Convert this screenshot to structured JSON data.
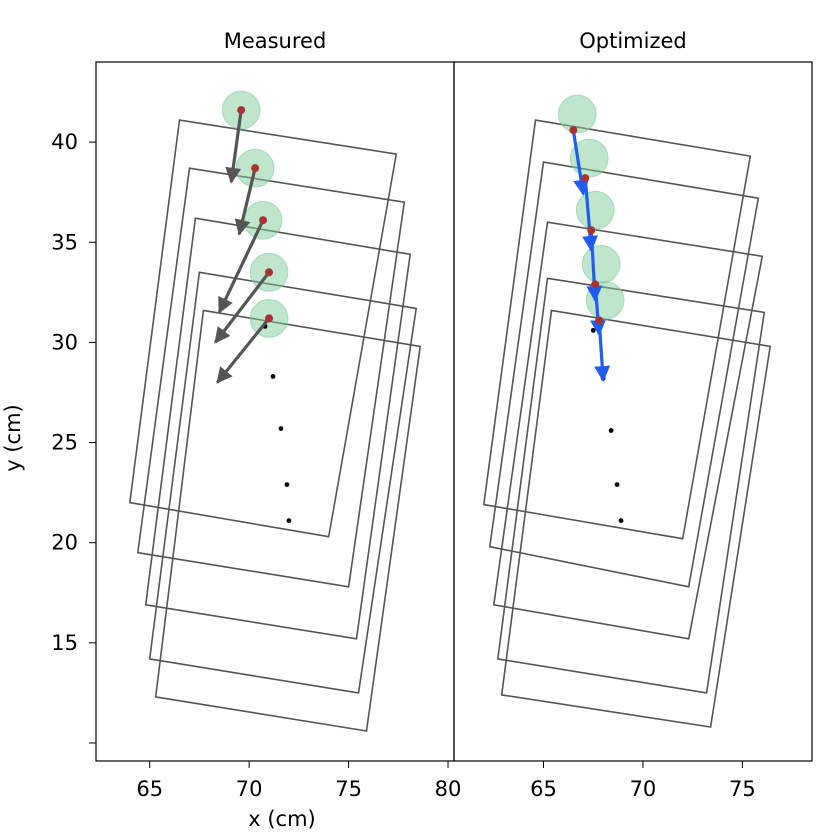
{
  "chart_data": [
    {
      "type": "scatter",
      "title": "Measured",
      "xlabel": "x (cm)",
      "ylabel": "y (cm)",
      "xlim": [
        62.3,
        80.3
      ],
      "ylim": [
        9.1,
        44.0
      ],
      "xticks": [
        65,
        70,
        75,
        80
      ],
      "yticks": [
        15,
        20,
        25,
        30,
        35,
        40
      ],
      "minor_yticks": [
        10
      ],
      "grid": false,
      "colors": {
        "frame": "#555555",
        "arrow": "#555555",
        "marker": "#a83232",
        "circle": "#7fcc9c",
        "point": "#000000"
      },
      "rectangles": [
        {
          "corners": [
            [
              64.0,
              22.0
            ],
            [
              66.5,
              41.1
            ],
            [
              77.4,
              39.4
            ],
            [
              74.0,
              20.3
            ]
          ]
        },
        {
          "corners": [
            [
              64.4,
              19.5
            ],
            [
              67.0,
              38.7
            ],
            [
              77.8,
              37.0
            ],
            [
              75.0,
              17.8
            ]
          ]
        },
        {
          "corners": [
            [
              64.8,
              16.9
            ],
            [
              67.3,
              36.2
            ],
            [
              78.1,
              34.4
            ],
            [
              75.4,
              15.2
            ]
          ]
        },
        {
          "corners": [
            [
              65.0,
              14.2
            ],
            [
              67.5,
              33.5
            ],
            [
              78.4,
              31.7
            ],
            [
              75.5,
              12.5
            ]
          ]
        },
        {
          "corners": [
            [
              65.3,
              12.3
            ],
            [
              67.7,
              31.6
            ],
            [
              78.6,
              29.8
            ],
            [
              75.9,
              10.6
            ]
          ]
        }
      ],
      "markers": [
        {
          "x": 69.6,
          "y": 41.6
        },
        {
          "x": 70.3,
          "y": 38.7
        },
        {
          "x": 70.7,
          "y": 36.1
        },
        {
          "x": 71.0,
          "y": 33.5
        },
        {
          "x": 71.0,
          "y": 31.2
        }
      ],
      "circle_radius_cm": 0.95,
      "arrows": [
        {
          "x0": 69.6,
          "y0": 41.6,
          "x1": 69.1,
          "y1": 38.0
        },
        {
          "x0": 70.3,
          "y0": 38.7,
          "x1": 69.5,
          "y1": 35.4
        },
        {
          "x0": 70.7,
          "y0": 36.1,
          "x1": 68.5,
          "y1": 31.5
        },
        {
          "x0": 71.0,
          "y0": 33.5,
          "x1": 68.3,
          "y1": 30.0
        },
        {
          "x0": 71.0,
          "y0": 31.2,
          "x1": 68.4,
          "y1": 28.0
        }
      ],
      "points": [
        {
          "x": 70.8,
          "y": 30.8
        },
        {
          "x": 71.2,
          "y": 28.3
        },
        {
          "x": 71.6,
          "y": 25.7
        },
        {
          "x": 71.9,
          "y": 22.9
        },
        {
          "x": 72.0,
          "y": 21.1
        }
      ]
    },
    {
      "type": "scatter",
      "title": "Optimized",
      "xlabel": "",
      "ylabel": "",
      "xlim": [
        60.5,
        78.5
      ],
      "ylim": [
        9.1,
        44.0
      ],
      "xticks": [
        65,
        70,
        75
      ],
      "yticks": [],
      "grid": false,
      "colors": {
        "frame": "#555555",
        "arrow": "#1f5cf0",
        "marker": "#a83232",
        "circle": "#7fcc9c",
        "point": "#000000"
      },
      "rectangles": [
        {
          "corners": [
            [
              62.0,
              21.9
            ],
            [
              64.6,
              41.1
            ],
            [
              75.4,
              39.3
            ],
            [
              72.0,
              20.2
            ]
          ]
        },
        {
          "corners": [
            [
              62.3,
              19.8
            ],
            [
              65.0,
              39.0
            ],
            [
              75.8,
              37.2
            ],
            [
              72.3,
              17.8
            ]
          ]
        },
        {
          "corners": [
            [
              62.5,
              16.9
            ],
            [
              65.2,
              36.0
            ],
            [
              76.0,
              34.3
            ],
            [
              72.3,
              15.2
            ]
          ]
        },
        {
          "corners": [
            [
              62.7,
              14.2
            ],
            [
              65.2,
              33.2
            ],
            [
              76.1,
              31.5
            ],
            [
              73.2,
              12.5
            ]
          ]
        },
        {
          "corners": [
            [
              62.9,
              12.4
            ],
            [
              65.4,
              31.6
            ],
            [
              76.4,
              29.8
            ],
            [
              73.4,
              10.8
            ]
          ]
        }
      ],
      "markers": [
        {
          "x": 66.5,
          "y": 40.6
        },
        {
          "x": 67.1,
          "y": 38.2
        },
        {
          "x": 67.4,
          "y": 35.6
        },
        {
          "x": 67.6,
          "y": 32.9
        },
        {
          "x": 67.8,
          "y": 31.1
        }
      ],
      "circles": [
        {
          "x": 66.7,
          "y": 41.4
        },
        {
          "x": 67.3,
          "y": 39.2
        },
        {
          "x": 67.6,
          "y": 36.6
        },
        {
          "x": 67.9,
          "y": 33.9
        },
        {
          "x": 68.1,
          "y": 32.1
        }
      ],
      "circle_radius_cm": 0.95,
      "arrows": [
        {
          "x0": 66.5,
          "y0": 40.6,
          "x1": 67.0,
          "y1": 37.4
        },
        {
          "x0": 67.1,
          "y0": 38.2,
          "x1": 67.4,
          "y1": 34.6
        },
        {
          "x0": 67.4,
          "y0": 35.6,
          "x1": 67.6,
          "y1": 32.1
        },
        {
          "x0": 67.6,
          "y0": 32.9,
          "x1": 67.8,
          "y1": 30.4
        },
        {
          "x0": 67.8,
          "y0": 31.1,
          "x1": 68.0,
          "y1": 28.1
        }
      ],
      "points": [
        {
          "x": 67.5,
          "y": 30.6
        },
        {
          "x": 68.0,
          "y": 28.2
        },
        {
          "x": 68.4,
          "y": 25.6
        },
        {
          "x": 68.7,
          "y": 22.9
        },
        {
          "x": 68.9,
          "y": 21.1
        }
      ]
    }
  ]
}
